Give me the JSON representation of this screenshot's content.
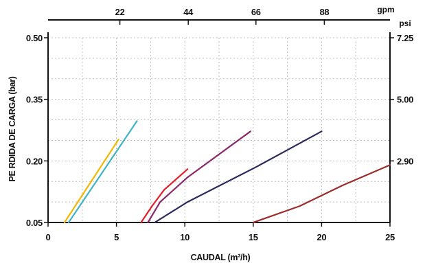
{
  "chart_data": {
    "type": "line",
    "xlabel": "CAUDAL (m³/h)",
    "ylabel": "PE RDIDA DE CARGA (bar)",
    "xlim": [
      0,
      25
    ],
    "ylim": [
      0.05,
      0.5
    ],
    "x_ticks": [
      "0",
      "5",
      "10",
      "15",
      "20",
      "25"
    ],
    "y_ticks": [
      "0.05",
      "0.20",
      "0.35",
      "0.50"
    ],
    "grid": true,
    "top_axis": {
      "unit": "gpm",
      "ticks": [
        {
          "label": "22",
          "x": 5.25
        },
        {
          "label": "44",
          "x": 10.25
        },
        {
          "label": "66",
          "x": 15.2
        },
        {
          "label": "88",
          "x": 20.2
        }
      ]
    },
    "right_axis": {
      "unit": "psi",
      "ticks": [
        {
          "label": "7.25",
          "y": 0.5
        },
        {
          "label": "5.00",
          "y": 0.35
        },
        {
          "label": "2.90",
          "y": 0.2
        }
      ]
    },
    "series": [
      {
        "color": "#f2b705",
        "points": [
          [
            1.2,
            0.05
          ],
          [
            5.15,
            0.252
          ]
        ]
      },
      {
        "color": "#3fb3c8",
        "points": [
          [
            1.5,
            0.05
          ],
          [
            6.5,
            0.297
          ]
        ]
      },
      {
        "color": "#e3202a",
        "points": [
          [
            6.8,
            0.05
          ],
          [
            7.6,
            0.09
          ],
          [
            8.5,
            0.13
          ],
          [
            10.2,
            0.18
          ]
        ]
      },
      {
        "color": "#8b2a6b",
        "points": [
          [
            7.3,
            0.05
          ],
          [
            8.2,
            0.1
          ],
          [
            10.2,
            0.16
          ],
          [
            14.8,
            0.272
          ]
        ]
      },
      {
        "color": "#2b2a5b",
        "points": [
          [
            7.8,
            0.05
          ],
          [
            10.2,
            0.1
          ],
          [
            15.2,
            0.185
          ],
          [
            20.0,
            0.272
          ]
        ]
      },
      {
        "color": "#9b2d2d",
        "points": [
          [
            15.0,
            0.05
          ],
          [
            18.4,
            0.09
          ],
          [
            21.5,
            0.14
          ],
          [
            25.0,
            0.19
          ]
        ]
      }
    ]
  }
}
